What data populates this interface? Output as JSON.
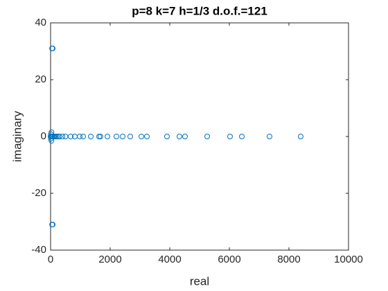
{
  "chart_data": {
    "type": "scatter",
    "title": "p=8 k=7 h=1/3 d.o.f.=121",
    "x_label": "real",
    "y_label": "imaginary",
    "xlim": [
      0,
      10000
    ],
    "ylim": [
      -40,
      40
    ],
    "xticks": [
      0,
      2000,
      4000,
      6000,
      8000,
      10000
    ],
    "yticks": [
      -40,
      -20,
      0,
      20,
      40
    ],
    "series": [
      {
        "color": "#0072bd",
        "x": [
          0,
          20,
          50,
          80,
          120,
          160,
          200,
          250,
          300,
          400,
          500,
          674,
          814,
          977,
          1093,
          1349,
          1628,
          1674,
          1907,
          2209,
          2419,
          2674,
          3047,
          3233,
          3907,
          4326,
          4512,
          5256,
          6023,
          6419,
          7349,
          8395,
          50,
          70,
          50,
          70,
          30,
          30,
          10,
          10
        ],
        "values": [
          0,
          0,
          0,
          0,
          0,
          0,
          0,
          0,
          0,
          0,
          0,
          0,
          0,
          0,
          0,
          0,
          0,
          0,
          0,
          0,
          0,
          0,
          0,
          0,
          0,
          0,
          0,
          0,
          0,
          0,
          0,
          0,
          31,
          31,
          -31,
          -31,
          1.5,
          -1.5,
          0.8,
          -0.8
        ]
      }
    ]
  }
}
